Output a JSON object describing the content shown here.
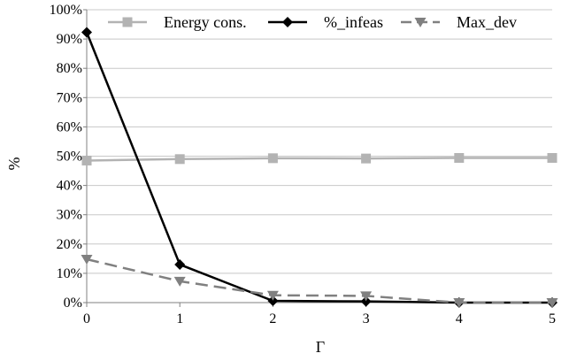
{
  "chart_data": {
    "type": "line",
    "x": [
      0,
      1,
      2,
      3,
      4,
      5
    ],
    "xlabel": "Γ",
    "ylabel": "%",
    "ylim": [
      0,
      100
    ],
    "yticks": [
      "0%",
      "10%",
      "20%",
      "30%",
      "40%",
      "50%",
      "60%",
      "70%",
      "80%",
      "90%",
      "100%"
    ],
    "xticks": [
      "0",
      "1",
      "2",
      "3",
      "4",
      "5"
    ],
    "grid": "horizontal",
    "legend": "top",
    "series": [
      {
        "name": "Energy cons.",
        "values": [
          48.5,
          49.0,
          49.3,
          49.2,
          49.4,
          49.4
        ],
        "color": "#b3b3b3",
        "marker": "square",
        "dash": "solid"
      },
      {
        "name": "%_infeas",
        "values": [
          92.3,
          13.0,
          0.6,
          0.4,
          0.0,
          0.0
        ],
        "color": "#000000",
        "marker": "diamond",
        "dash": "solid"
      },
      {
        "name": "Max_dev",
        "values": [
          14.8,
          7.3,
          2.5,
          2.3,
          0.0,
          0.0
        ],
        "color": "#808080",
        "marker": "triangle-down",
        "dash": "dashed"
      }
    ]
  }
}
